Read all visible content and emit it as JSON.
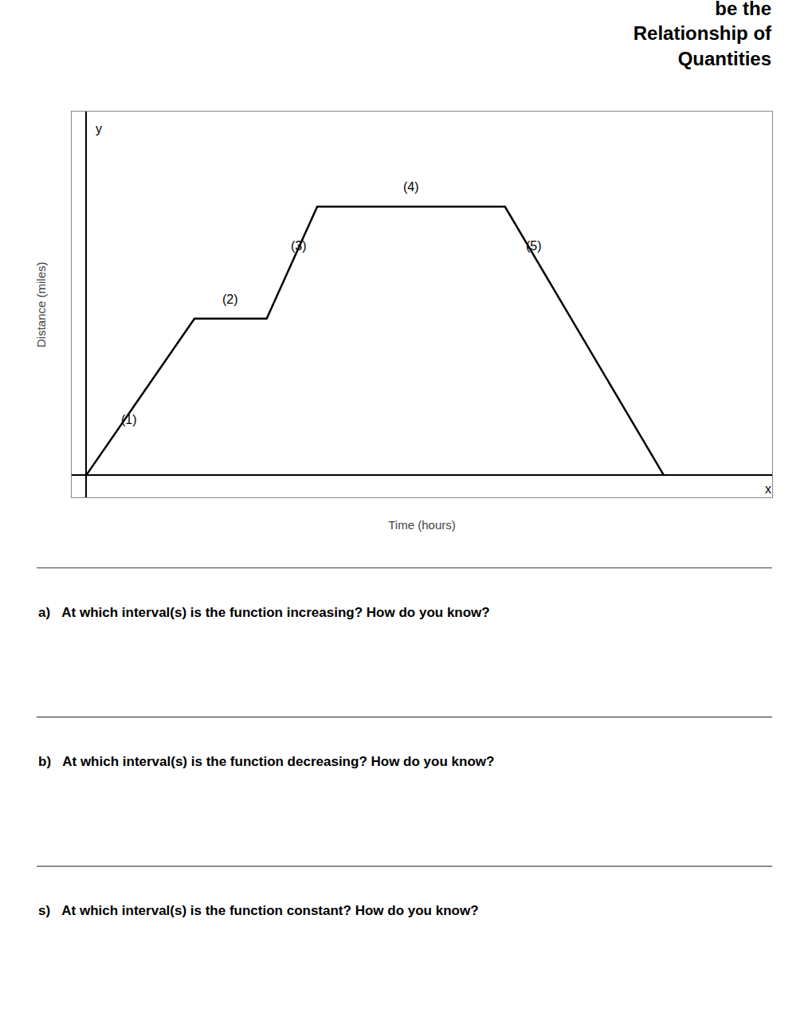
{
  "chart_data": {
    "type": "line",
    "title": "be the\nRelationship of\nQuantities",
    "x_label": "Time (hours)",
    "y_label": "Distance (miles)",
    "x": [
      0,
      1.5,
      2.5,
      3.2,
      4.5,
      5.8,
      8.0
    ],
    "values": [
      0,
      2.8,
      2.8,
      4.8,
      4.8,
      4.8,
      0
    ],
    "color": "#000000",
    "xlim": [
      -0.2,
      9.5
    ],
    "ylim": [
      -0.4,
      6.5
    ],
    "tick_labels": false,
    "grid": false,
    "annotations": [
      {
        "text": "(1)",
        "x": 0.6,
        "y": 1.0
      },
      {
        "text": "(2)",
        "x": 2.0,
        "y": 3.15
      },
      {
        "text": "(3)",
        "x": 2.95,
        "y": 4.1
      },
      {
        "text": "(4)",
        "x": 4.5,
        "y": 5.15
      },
      {
        "text": "(5)",
        "x": 6.2,
        "y": 4.1
      },
      {
        "text": "y",
        "x": 0.18,
        "y": 6.2
      },
      {
        "text": "x",
        "x": 9.45,
        "y": -0.25
      }
    ],
    "questions": [
      "a)   At which interval(s) is the function increasing? How do you know?",
      "b)   At which interval(s) is the function decreasing? How do you know?",
      "s)   At which interval(s) is the function constant? How do you know?"
    ]
  }
}
